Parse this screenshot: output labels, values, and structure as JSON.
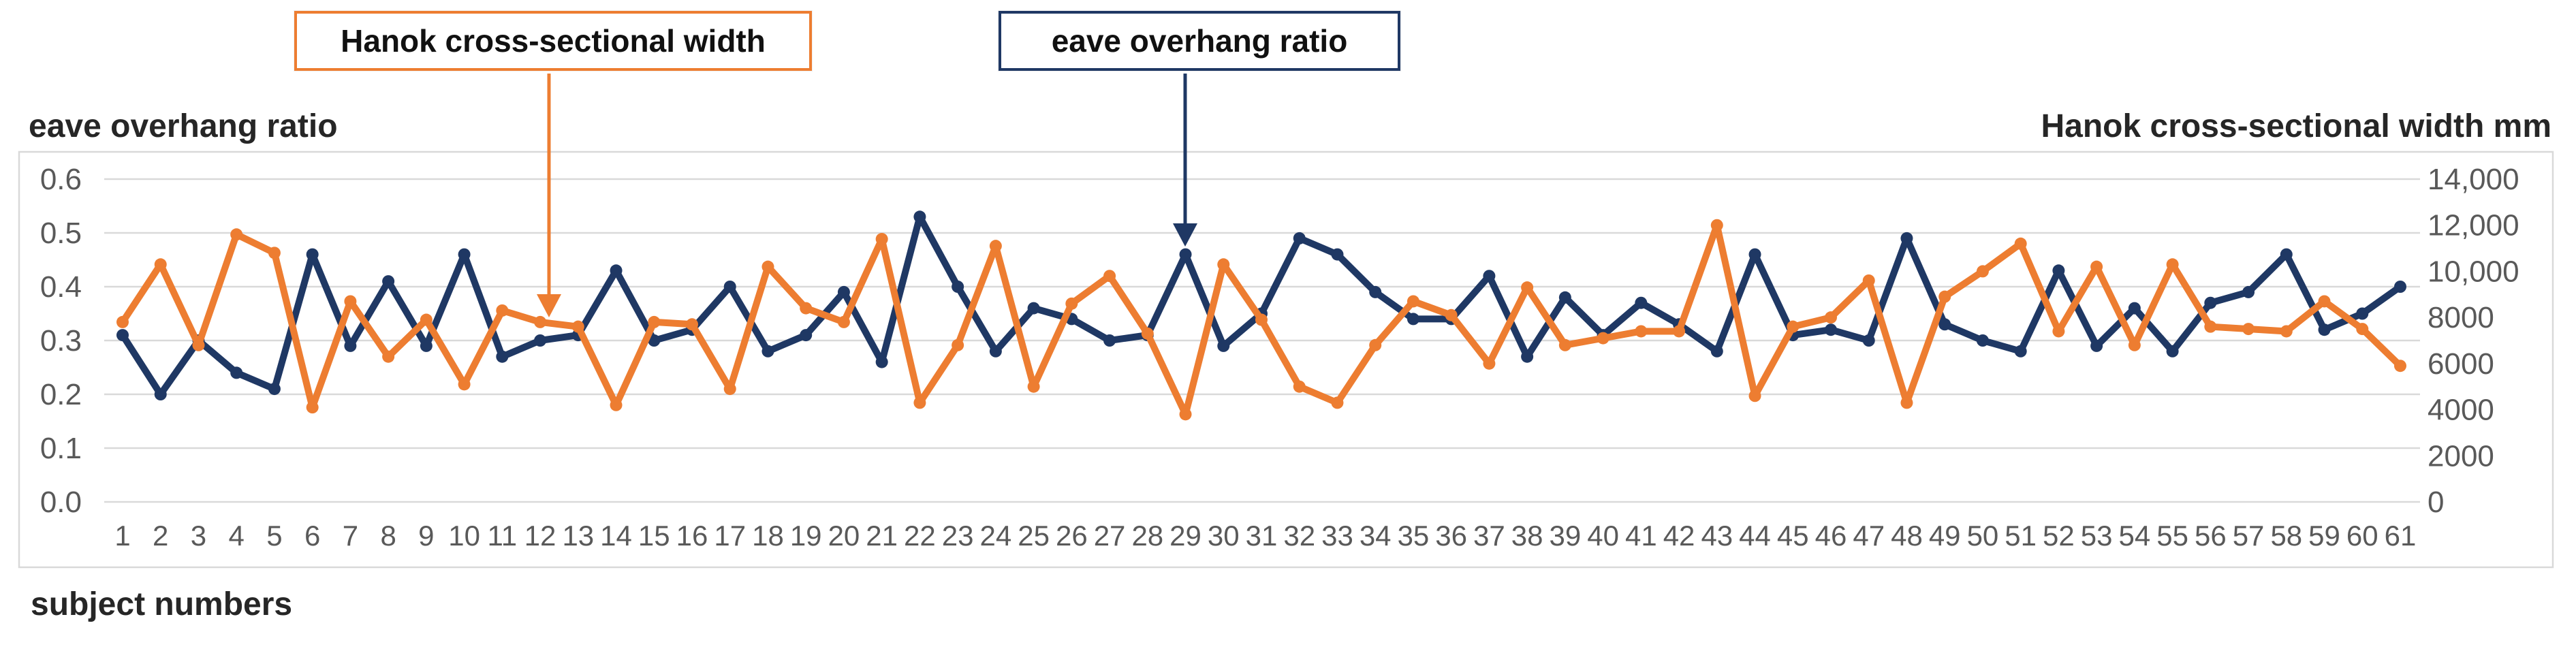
{
  "callouts": {
    "width_label": "Hanok cross-sectional width",
    "ratio_label": "eave overhang ratio"
  },
  "colors": {
    "orange": "#ED7D31",
    "navy": "#1F3864",
    "gridline": "#D9D9D9",
    "tick_text": "#595959",
    "title_text": "#262626"
  },
  "chart_data": {
    "type": "line",
    "title": "",
    "xlabel": "subject numbers",
    "ylabel_left": "eave overhang ratio",
    "ylabel_right": "Hanok cross-sectional width mm",
    "grid": true,
    "legend_position": "callout-boxes-top",
    "categories": [
      1,
      2,
      3,
      4,
      5,
      6,
      7,
      8,
      9,
      10,
      11,
      12,
      13,
      14,
      15,
      16,
      17,
      18,
      19,
      20,
      21,
      22,
      23,
      24,
      25,
      26,
      27,
      28,
      29,
      30,
      31,
      32,
      33,
      34,
      35,
      36,
      37,
      38,
      39,
      40,
      41,
      42,
      43,
      44,
      45,
      46,
      47,
      48,
      49,
      50,
      51,
      52,
      53,
      54,
      55,
      56,
      57,
      58,
      59,
      60,
      61
    ],
    "left_axis": {
      "min": 0,
      "max": 0.6,
      "tick_labels": [
        "0.6",
        "0.5",
        "0.4",
        "0.3",
        "0.2",
        "0.1",
        "0.0"
      ],
      "tick_values": [
        0.6,
        0.5,
        0.4,
        0.3,
        0.2,
        0.1,
        0.0
      ]
    },
    "right_axis": {
      "min": 0,
      "max": 14000,
      "tick_labels": [
        "14,000",
        "12,000",
        "10,000",
        "8000",
        "6000",
        "4000",
        "2000",
        "0"
      ],
      "tick_values": [
        14000,
        12000,
        10000,
        8000,
        6000,
        4000,
        2000,
        0
      ]
    },
    "series": [
      {
        "name": "eave overhang ratio",
        "axis": "left",
        "color": "#1F3864",
        "values": [
          0.31,
          0.2,
          0.3,
          0.24,
          0.21,
          0.46,
          0.29,
          0.41,
          0.29,
          0.46,
          0.27,
          0.3,
          0.31,
          0.43,
          0.3,
          0.32,
          0.4,
          0.28,
          0.31,
          0.39,
          0.26,
          0.53,
          0.4,
          0.28,
          0.36,
          0.34,
          0.3,
          0.31,
          0.46,
          0.29,
          0.35,
          0.49,
          0.46,
          0.39,
          0.34,
          0.34,
          0.42,
          0.27,
          0.38,
          0.31,
          0.37,
          0.33,
          0.28,
          0.46,
          0.31,
          0.32,
          0.3,
          0.49,
          0.33,
          0.3,
          0.28,
          0.43,
          0.29,
          0.36,
          0.28,
          0.37,
          0.39,
          0.46,
          0.32,
          0.35,
          0.4
        ]
      },
      {
        "name": "Hanok cross-sectional width",
        "axis": "right",
        "color": "#ED7D31",
        "values": [
          7800,
          10300,
          6800,
          11600,
          10800,
          4100,
          8700,
          6300,
          7900,
          5100,
          8300,
          7800,
          7600,
          4200,
          7800,
          7700,
          4900,
          10200,
          8400,
          7800,
          11400,
          4300,
          6800,
          11100,
          5000,
          8600,
          9800,
          7300,
          3800,
          10300,
          7900,
          5000,
          4300,
          6800,
          8700,
          8100,
          6000,
          9300,
          6800,
          7100,
          7400,
          7400,
          12000,
          4600,
          7600,
          8000,
          9600,
          4300,
          8900,
          10000,
          11200,
          7400,
          10200,
          6800,
          10300,
          7600,
          7500,
          7400,
          8700,
          7500,
          5900
        ]
      }
    ]
  }
}
